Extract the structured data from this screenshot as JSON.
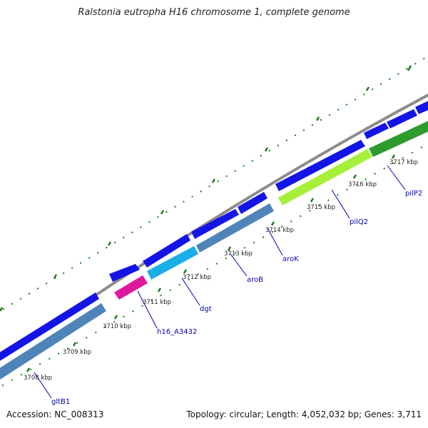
{
  "title": "Ralstonia eutropha H16 chromosome 1, complete genome",
  "footer": {
    "accession": "Accession: NC_008313",
    "topology": "Topology: circular; Length: 4,052,032 bp; Genes: 3,711"
  },
  "colors": {
    "backbone": "#8c8c8c",
    "forward_gene": "#1414e6",
    "reverse_gene": "#4f84b8",
    "tick": "#1a7a1a",
    "label": "#0000b0"
  },
  "scale_ticks": [
    {
      "label": "3708 kbp"
    },
    {
      "label": "3709 kbp"
    },
    {
      "label": "3710 kbp"
    },
    {
      "label": "3711 kbp"
    },
    {
      "label": "3712 kbp"
    },
    {
      "label": "3713 kbp"
    },
    {
      "label": "3714 kbp"
    },
    {
      "label": "3715 kbp"
    },
    {
      "label": "3716 kbp"
    },
    {
      "label": "3717 kbp"
    }
  ],
  "gene_labels": [
    "gltB1",
    "h16_A3432",
    "dgt",
    "aroB",
    "aroK",
    "pilQ2",
    "pilP2"
  ]
}
